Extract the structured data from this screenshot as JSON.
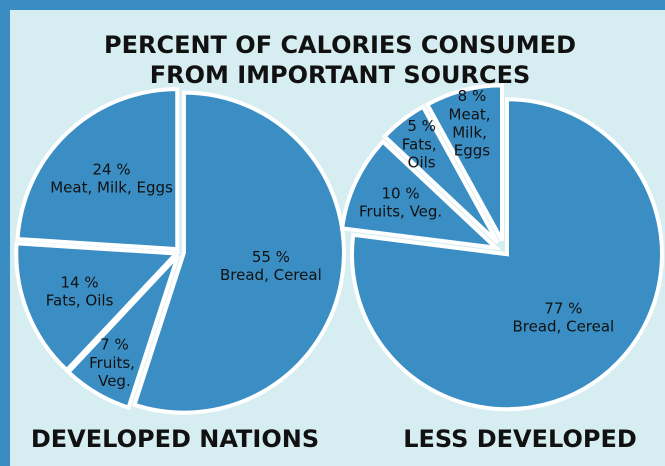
{
  "title": [
    "PERCENT OF CALORIES CONSUMED",
    "FROM IMPORTANT SOURCES"
  ],
  "chart_data": [
    {
      "type": "pie",
      "title": "DEVELOPED NATIONS",
      "color": "#3b8ec4",
      "categories": [
        "Bread, Cereal",
        "Fruits, Veg.",
        "Fats, Oils",
        "Meat, Milk, Eggs"
      ],
      "values": [
        55,
        7,
        14,
        24
      ],
      "value_labels": [
        "55 %",
        "7 %",
        "14 %",
        "24 %"
      ]
    },
    {
      "type": "pie",
      "title": "LESS DEVELOPED",
      "color": "#3b8ec4",
      "categories": [
        "Bread, Cereal",
        "Fruits, Veg.",
        "Fats, Oils",
        "Meat, Milk, Eggs"
      ],
      "values": [
        77,
        10,
        5,
        8
      ],
      "value_labels": [
        "77 %",
        "10 %",
        "5 %",
        "8 %"
      ]
    }
  ]
}
